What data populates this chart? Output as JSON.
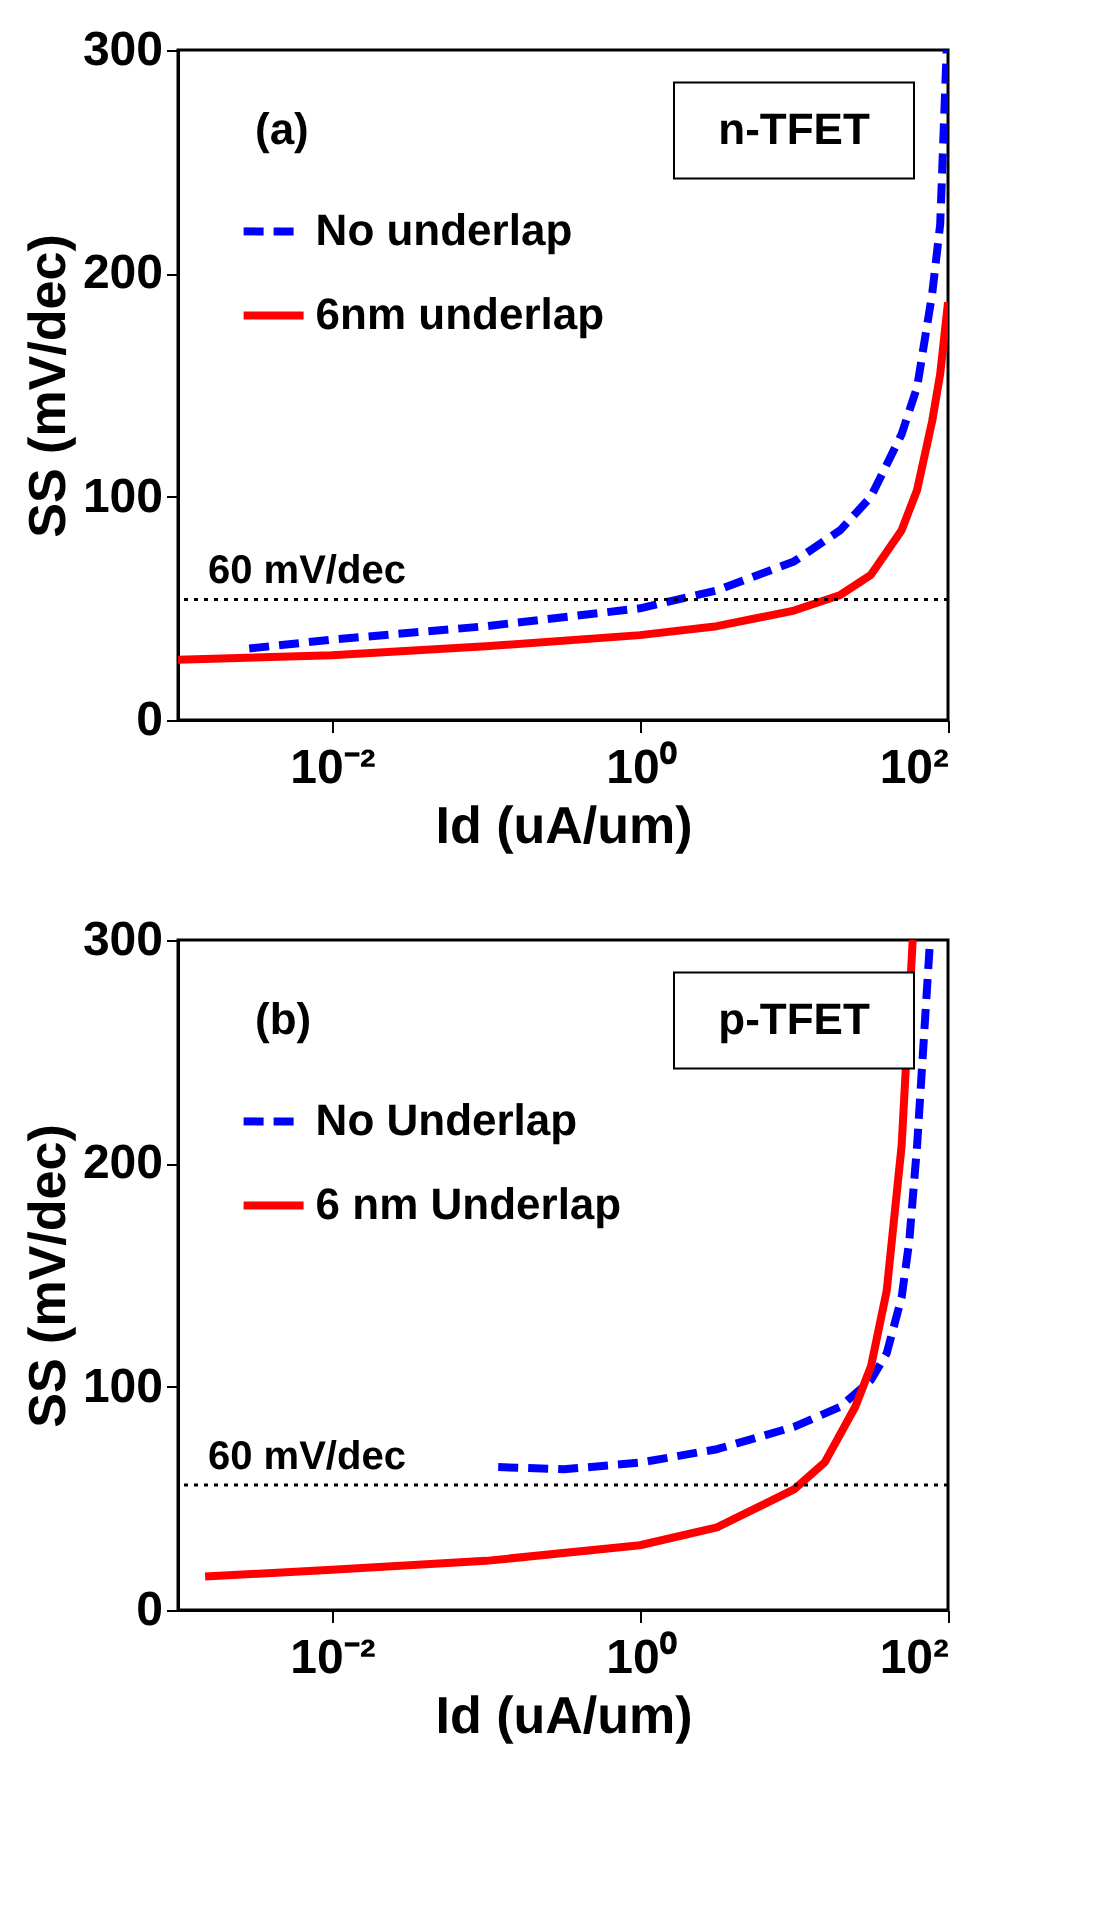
{
  "chart_data": [
    {
      "type": "line",
      "xlabel": "Id (uA/um)",
      "ylabel": "SS (mV/dec)",
      "log": "x",
      "xlim": [
        0.001,
        100
      ],
      "ylim": [
        0,
        300
      ],
      "xticks": [
        {
          "value": 0.01,
          "label": "10⁻²"
        },
        {
          "value": 1,
          "label": "10⁰"
        },
        {
          "value": 100,
          "label": "10²"
        }
      ],
      "yticks": [
        0,
        100,
        200,
        300
      ],
      "grid": false,
      "legend": "top left",
      "annotations": [
        "(a)",
        "n-TFET"
      ],
      "ref_lines": [
        {
          "axis": "y",
          "value": 54,
          "label": "60 mV/dec",
          "color": "#000000",
          "line_style": "dotted"
        }
      ],
      "series": [
        {
          "name": "No underlap",
          "color": "#0000ff",
          "line_style": "dashed",
          "x": [
            0.0029,
            0.01,
            0.1,
            1,
            3.16,
            10,
            20,
            31.6,
            50,
            63,
            79,
            89,
            98
          ],
          "values": [
            32,
            36,
            42,
            50,
            58,
            71,
            85,
            100,
            128,
            149,
            191,
            222,
            300
          ]
        },
        {
          "name": "6nm underlap",
          "color": "#ff0000",
          "line_style": "solid",
          "x": [
            0.001,
            0.01,
            0.1,
            1,
            3.16,
            10,
            20,
            31.6,
            50,
            63,
            79,
            89,
            100
          ],
          "values": [
            27,
            29,
            33,
            38,
            42,
            49,
            56,
            65,
            85,
            103,
            134,
            155,
            187
          ]
        }
      ]
    },
    {
      "type": "line",
      "xlabel": "Id (uA/um)",
      "ylabel": "SS (mV/dec)",
      "log": "x",
      "xlim": [
        0.001,
        100
      ],
      "ylim": [
        0,
        300
      ],
      "xticks": [
        {
          "value": 0.01,
          "label": "10⁻²"
        },
        {
          "value": 1,
          "label": "10⁰"
        },
        {
          "value": 100,
          "label": "10²"
        }
      ],
      "yticks": [
        0,
        100,
        200,
        300
      ],
      "grid": false,
      "legend": "top left",
      "annotations": [
        "(b)",
        "p-TFET"
      ],
      "ref_lines": [
        {
          "axis": "y",
          "value": 56,
          "label": "60 mV/dec",
          "color": "#000000",
          "line_style": "dotted"
        }
      ],
      "series": [
        {
          "name": "No Underlap",
          "color": "#0000ff",
          "line_style": "dashed",
          "x": [
            0.12,
            0.32,
            1,
            3.16,
            10,
            20,
            31.6,
            40,
            50,
            56,
            63,
            76
          ],
          "values": [
            64,
            63,
            66,
            72,
            82,
            91,
            103,
            115,
            140,
            165,
            208,
            297
          ]
        },
        {
          "name": "6 nm Underlap",
          "color": "#ff0000",
          "line_style": "solid",
          "x": [
            0.0015,
            0.01,
            0.1,
            1,
            3.16,
            10,
            15.8,
            25,
            31.6,
            40,
            50,
            59
          ],
          "values": [
            15,
            18,
            22,
            29,
            37,
            54,
            66,
            91,
            109,
            143,
            208,
            300
          ]
        }
      ]
    }
  ]
}
